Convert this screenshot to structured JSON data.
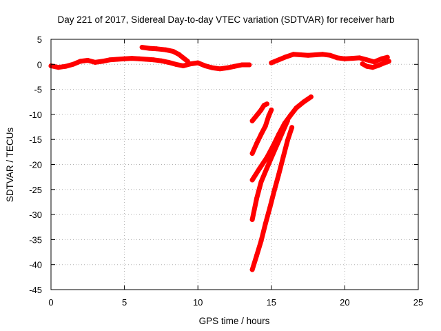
{
  "chart_data": {
    "type": "scatter",
    "title": "Day 221 of 2017, Sidereal Day-to-day VTEC variation (SDTVAR) for receiver harb",
    "xlabel": "GPS time / hours",
    "ylabel": "SDTVAR / TECUs",
    "xlim": [
      0,
      25
    ],
    "ylim": [
      -45,
      5
    ],
    "x_ticks": [
      0,
      5,
      10,
      15,
      20,
      25
    ],
    "y_ticks": [
      5,
      0,
      -5,
      -10,
      -15,
      -20,
      -25,
      -30,
      -35,
      -40,
      -45
    ],
    "x_tick_labels": [
      "0",
      "5",
      "10",
      "15",
      "20",
      "25"
    ],
    "y_tick_labels": [
      "5",
      "0",
      "-5",
      "-10",
      "-15",
      "-20",
      "-25",
      "-30",
      "-35",
      "-40",
      "-45"
    ],
    "grid": true,
    "marker_color": "#ff0000",
    "series": [
      {
        "points": [
          [
            0.0,
            -0.3
          ],
          [
            0.5,
            -0.6
          ],
          [
            1.0,
            -0.4
          ],
          [
            1.5,
            0.0
          ],
          [
            2.0,
            0.6
          ],
          [
            2.5,
            0.8
          ],
          [
            3.0,
            0.4
          ],
          [
            3.5,
            0.6
          ],
          [
            4.0,
            0.9
          ],
          [
            4.5,
            1.0
          ],
          [
            5.0,
            1.1
          ],
          [
            5.5,
            1.2
          ],
          [
            6.0,
            1.1
          ],
          [
            6.5,
            1.0
          ],
          [
            7.0,
            0.9
          ],
          [
            7.5,
            0.7
          ],
          [
            8.0,
            0.4
          ],
          [
            8.5,
            0.0
          ],
          [
            9.0,
            -0.3
          ],
          [
            9.5,
            0.1
          ],
          [
            10.0,
            0.3
          ],
          [
            10.5,
            -0.3
          ],
          [
            11.0,
            -0.7
          ],
          [
            11.5,
            -0.9
          ],
          [
            12.0,
            -0.7
          ],
          [
            12.5,
            -0.4
          ],
          [
            13.0,
            -0.1
          ],
          [
            13.5,
            -0.1
          ]
        ]
      },
      {
        "points": [
          [
            6.2,
            3.4
          ],
          [
            6.7,
            3.2
          ],
          [
            7.2,
            3.1
          ],
          [
            7.8,
            2.9
          ],
          [
            8.3,
            2.6
          ],
          [
            8.7,
            2.0
          ],
          [
            9.0,
            1.3
          ],
          [
            9.3,
            0.6
          ]
        ]
      },
      {
        "points": [
          [
            15.0,
            0.3
          ],
          [
            15.5,
            0.9
          ],
          [
            16.0,
            1.5
          ],
          [
            16.5,
            2.0
          ],
          [
            17.0,
            1.9
          ],
          [
            17.5,
            1.8
          ],
          [
            18.0,
            1.9
          ],
          [
            18.5,
            2.0
          ],
          [
            19.0,
            1.8
          ],
          [
            19.5,
            1.3
          ],
          [
            20.0,
            1.1
          ],
          [
            20.5,
            1.2
          ],
          [
            21.0,
            1.3
          ],
          [
            21.5,
            0.9
          ],
          [
            22.0,
            0.5
          ],
          [
            22.5,
            1.1
          ],
          [
            22.9,
            1.4
          ]
        ]
      },
      {
        "points": [
          [
            21.2,
            0.1
          ],
          [
            21.5,
            -0.4
          ],
          [
            21.9,
            -0.6
          ],
          [
            22.3,
            -0.2
          ],
          [
            22.7,
            0.3
          ],
          [
            23.0,
            0.6
          ]
        ]
      },
      {
        "points": [
          [
            13.7,
            -11.3
          ],
          [
            14.0,
            -10.2
          ],
          [
            14.3,
            -9.1
          ],
          [
            14.5,
            -8.2
          ],
          [
            14.7,
            -7.9
          ]
        ]
      },
      {
        "points": [
          [
            13.7,
            -17.8
          ],
          [
            14.0,
            -15.8
          ],
          [
            14.3,
            -14.0
          ],
          [
            14.6,
            -12.3
          ],
          [
            14.8,
            -10.5
          ],
          [
            15.0,
            -9.1
          ]
        ]
      },
      {
        "points": [
          [
            13.7,
            -23.1
          ],
          [
            14.2,
            -20.8
          ],
          [
            14.7,
            -18.6
          ],
          [
            15.1,
            -16.4
          ],
          [
            15.5,
            -14.0
          ],
          [
            15.9,
            -11.8
          ],
          [
            16.3,
            -10.2
          ],
          [
            16.7,
            -8.7
          ],
          [
            17.2,
            -7.5
          ],
          [
            17.7,
            -6.5
          ]
        ]
      },
      {
        "points": [
          [
            13.7,
            -31.0
          ],
          [
            14.0,
            -26.8
          ],
          [
            14.3,
            -23.5
          ],
          [
            14.7,
            -20.7
          ],
          [
            15.1,
            -18.0
          ],
          [
            15.5,
            -15.3
          ],
          [
            15.9,
            -12.6
          ],
          [
            16.1,
            -11.3
          ]
        ]
      },
      {
        "points": [
          [
            13.7,
            -41.0
          ],
          [
            14.0,
            -38.2
          ],
          [
            14.3,
            -35.3
          ],
          [
            14.6,
            -31.8
          ],
          [
            14.9,
            -28.6
          ],
          [
            15.2,
            -25.2
          ],
          [
            15.5,
            -22.0
          ],
          [
            15.8,
            -18.6
          ],
          [
            16.1,
            -15.2
          ],
          [
            16.4,
            -12.6
          ]
        ]
      }
    ]
  }
}
